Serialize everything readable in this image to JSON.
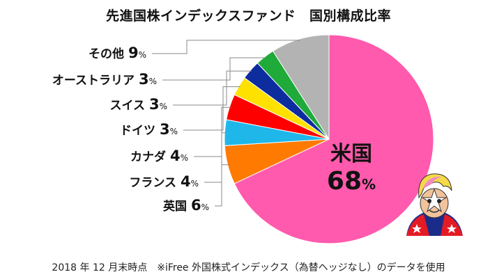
{
  "chart_data": {
    "type": "pie",
    "title": "先進国株インデックスファンド　国別構成比率",
    "unit": "%",
    "slices": [
      {
        "label": "米国",
        "value": 68,
        "color": "#ff5aad"
      },
      {
        "label": "英国",
        "value": 6,
        "color": "#ff7a00"
      },
      {
        "label": "フランス",
        "value": 4,
        "color": "#1fb7ea"
      },
      {
        "label": "カナダ",
        "value": 4,
        "color": "#ff0000"
      },
      {
        "label": "ドイツ",
        "value": 3,
        "color": "#ffe100"
      },
      {
        "label": "スイス",
        "value": 3,
        "color": "#0d2c9e"
      },
      {
        "label": "オーストラリア",
        "value": 3,
        "color": "#1faa3a"
      },
      {
        "label": "その他",
        "value": 9,
        "color": "#b3b3b3"
      }
    ],
    "legend": "none"
  },
  "footnote": "2018 年 12 月末時点　※iFree 外国株式インデックス（為替ヘッジなし）のデータを使用"
}
